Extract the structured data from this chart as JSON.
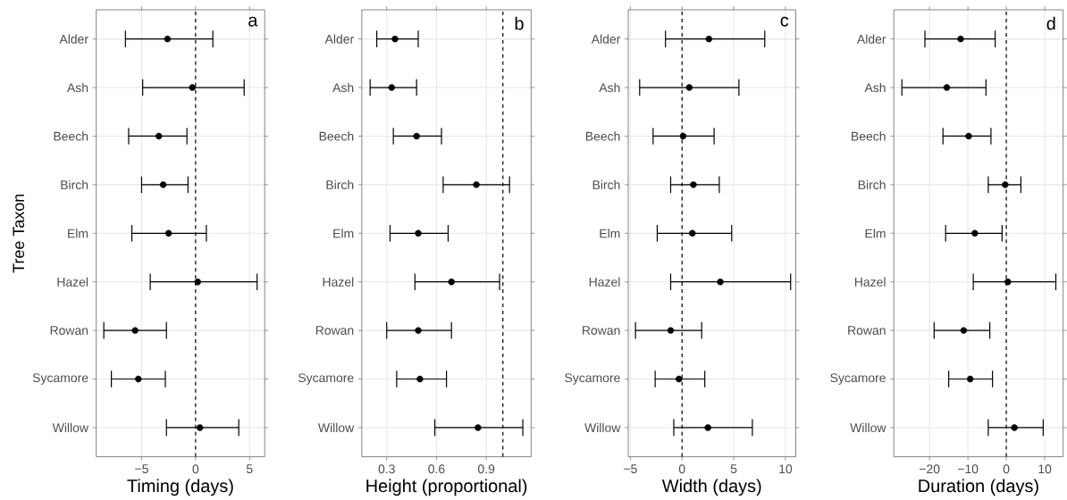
{
  "chart_data": [
    {
      "type": "scatter",
      "orientation": "horizontal",
      "categories": [
        "Alder",
        "Ash",
        "Beech",
        "Birch",
        "Elm",
        "Hazel",
        "Rowan",
        "Sycamore",
        "Willow"
      ],
      "values": [
        -2.6,
        -0.3,
        -3.4,
        -3.0,
        -2.5,
        0.2,
        -5.6,
        -5.3,
        0.4
      ],
      "errors": [
        [
          -6.5,
          1.6
        ],
        [
          -4.9,
          4.5
        ],
        [
          -6.2,
          -0.8
        ],
        [
          -5.0,
          -0.7
        ],
        [
          -5.9,
          1.0
        ],
        [
          -4.2,
          5.7
        ],
        [
          -8.5,
          -2.7
        ],
        [
          -7.8,
          -2.8
        ],
        [
          -2.7,
          4.0
        ]
      ],
      "color": "#000000",
      "xlabel": "Timing (days)",
      "ylabel": "Tree Taxon",
      "xlim": [
        -9.2,
        6.4
      ],
      "xticks": [
        {
          "value": -5,
          "label": "−5"
        },
        0,
        5
      ],
      "grid": true,
      "ref_lines": [
        {
          "axis": "x",
          "value": 0,
          "line_style": "dashed"
        }
      ],
      "annotations": [
        "a"
      ]
    },
    {
      "type": "scatter",
      "orientation": "horizontal",
      "categories": [
        "Alder",
        "Ash",
        "Beech",
        "Birch",
        "Elm",
        "Hazel",
        "Rowan",
        "Sycamore",
        "Willow"
      ],
      "values": [
        0.35,
        0.33,
        0.48,
        0.84,
        0.49,
        0.69,
        0.49,
        0.5,
        0.85
      ],
      "errors": [
        [
          0.24,
          0.49
        ],
        [
          0.2,
          0.48
        ],
        [
          0.34,
          0.63
        ],
        [
          0.64,
          1.04
        ],
        [
          0.32,
          0.67
        ],
        [
          0.47,
          0.98
        ],
        [
          0.3,
          0.69
        ],
        [
          0.36,
          0.66
        ],
        [
          0.59,
          1.12
        ]
      ],
      "color": "#000000",
      "xlabel": "Height (proportional)",
      "xlim": [
        0.15,
        1.17
      ],
      "xticks": [
        0.3,
        0.6,
        0.9
      ],
      "grid": true,
      "ref_lines": [
        {
          "axis": "x",
          "value": 1,
          "line_style": "dashed"
        }
      ],
      "annotations": [
        "b"
      ]
    },
    {
      "type": "scatter",
      "orientation": "horizontal",
      "categories": [
        "Alder",
        "Ash",
        "Beech",
        "Birch",
        "Elm",
        "Hazel",
        "Rowan",
        "Sycamore",
        "Willow"
      ],
      "values": [
        2.6,
        0.7,
        0.1,
        1.1,
        1.0,
        3.7,
        -1.1,
        -0.3,
        2.5
      ],
      "errors": [
        [
          -1.6,
          8.0
        ],
        [
          -4.1,
          5.5
        ],
        [
          -2.8,
          3.1
        ],
        [
          -1.1,
          3.6
        ],
        [
          -2.4,
          4.8
        ],
        [
          -1.1,
          10.5
        ],
        [
          -4.5,
          1.9
        ],
        [
          -2.6,
          2.2
        ],
        [
          -0.8,
          6.8
        ]
      ],
      "color": "#000000",
      "xlabel": "Width (days)",
      "xlim": [
        -5.2,
        11.0
      ],
      "xticks": [
        {
          "value": -5,
          "label": "−5"
        },
        0,
        5,
        10
      ],
      "grid": true,
      "ref_lines": [
        {
          "axis": "x",
          "value": 0,
          "line_style": "dashed"
        }
      ],
      "annotations": [
        "c"
      ]
    },
    {
      "type": "scatter",
      "orientation": "horizontal",
      "categories": [
        "Alder",
        "Ash",
        "Beech",
        "Birch",
        "Elm",
        "Hazel",
        "Rowan",
        "Sycamore",
        "Willow"
      ],
      "values": [
        -11.9,
        -15.5,
        -9.8,
        -0.3,
        -8.2,
        0.4,
        -11.1,
        -9.4,
        2.1
      ],
      "errors": [
        [
          -21.2,
          -2.9
        ],
        [
          -27.2,
          -5.3
        ],
        [
          -16.5,
          -4.0
        ],
        [
          -4.7,
          3.8
        ],
        [
          -15.8,
          -1.1
        ],
        [
          -8.6,
          12.9
        ],
        [
          -18.8,
          -4.3
        ],
        [
          -15.0,
          -3.6
        ],
        [
          -4.7,
          9.6
        ]
      ],
      "color": "#000000",
      "xlabel": "Duration (days)",
      "xlim": [
        -29.3,
        14.8
      ],
      "xticks": [
        {
          "value": -20,
          "label": "−20"
        },
        {
          "value": -10,
          "label": "−10"
        },
        0,
        10
      ],
      "grid": true,
      "ref_lines": [
        {
          "axis": "x",
          "value": 0,
          "line_style": "dashed"
        }
      ],
      "annotations": [
        "d"
      ]
    }
  ]
}
